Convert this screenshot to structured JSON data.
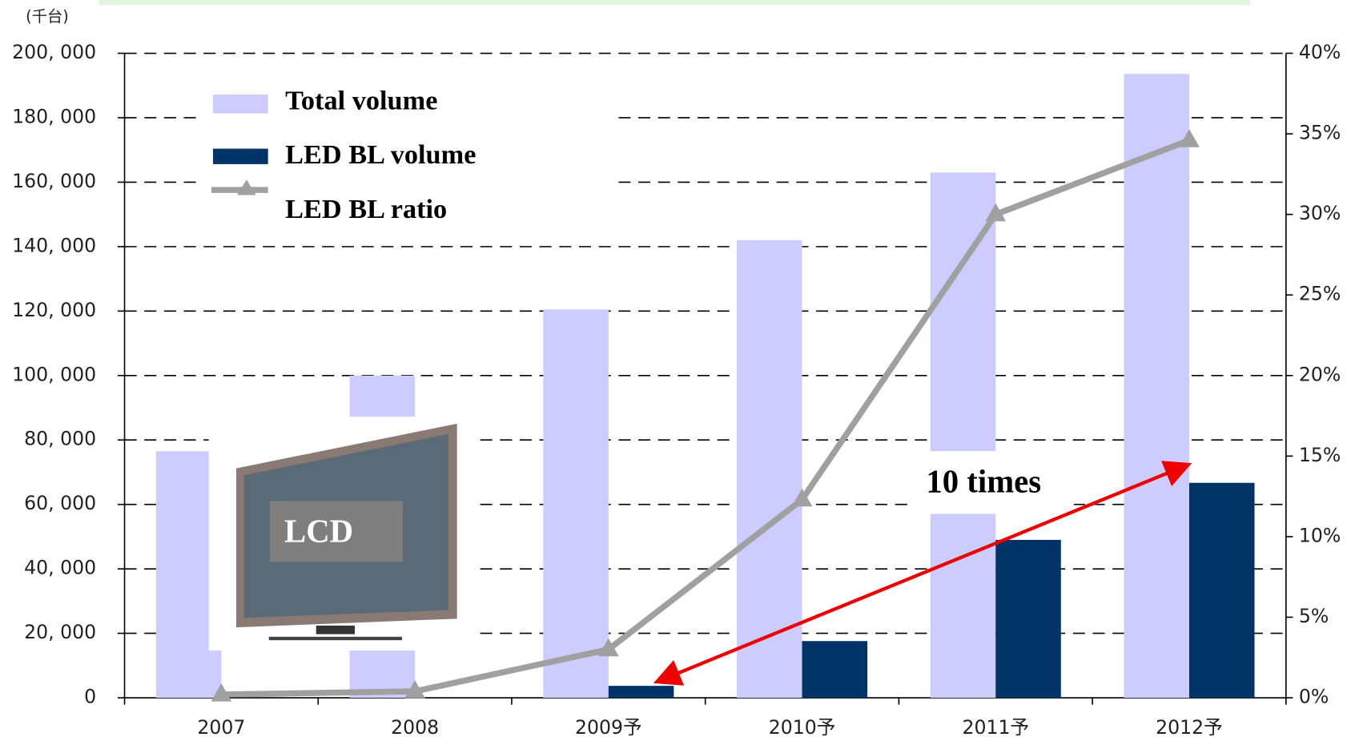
{
  "chart_data": {
    "type": "bar-line",
    "y_axis_unit": "(千台)",
    "categories": [
      "2007",
      "2008",
      "2009予",
      "2010予",
      "2011予",
      "2012予"
    ],
    "series": [
      {
        "name": "Total volume",
        "color": "#ccccff",
        "type": "bar",
        "values": [
          76500,
          100000,
          120500,
          142000,
          163000,
          193600
        ]
      },
      {
        "name": "LED BL volume",
        "color": "#003366",
        "type": "bar",
        "values": [
          0,
          0,
          3700,
          17600,
          49000,
          66700
        ]
      },
      {
        "name": "LED BL ratio",
        "color": "#a0a0a0",
        "type": "line",
        "axis": "y2",
        "values": [
          0.2,
          0.4,
          3.0,
          12.3,
          30.0,
          34.6
        ]
      }
    ],
    "ylim": [
      0,
      200000
    ],
    "yticks": [
      0,
      {
        "value": 20000,
        "label": "20, 000"
      },
      {
        "value": 40000,
        "label": "40, 000"
      },
      {
        "value": 60000,
        "label": "60, 000"
      },
      {
        "value": 80000,
        "label": "80, 000"
      },
      {
        "value": 100000,
        "label": "100, 000"
      },
      {
        "value": 120000,
        "label": "120, 000"
      },
      {
        "value": 140000,
        "label": "140, 000"
      },
      {
        "value": 160000,
        "label": "160, 000"
      },
      {
        "value": 180000,
        "label": "180, 000"
      },
      {
        "value": 200000,
        "label": "200, 000"
      }
    ],
    "y2lim": [
      0,
      40
    ],
    "y2ticks": [
      {
        "value": 0,
        "label": "0%"
      },
      {
        "value": 5,
        "label": "5%"
      },
      {
        "value": 10,
        "label": "10%"
      },
      {
        "value": 15,
        "label": "15%"
      },
      {
        "value": 20,
        "label": "20%"
      },
      {
        "value": 25,
        "label": "25%"
      },
      {
        "value": 30,
        "label": "30%"
      },
      {
        "value": 35,
        "label": "35%"
      },
      {
        "value": 40,
        "label": "40%"
      }
    ],
    "grid": true,
    "annotations": [
      "10 times",
      "LCD"
    ]
  }
}
